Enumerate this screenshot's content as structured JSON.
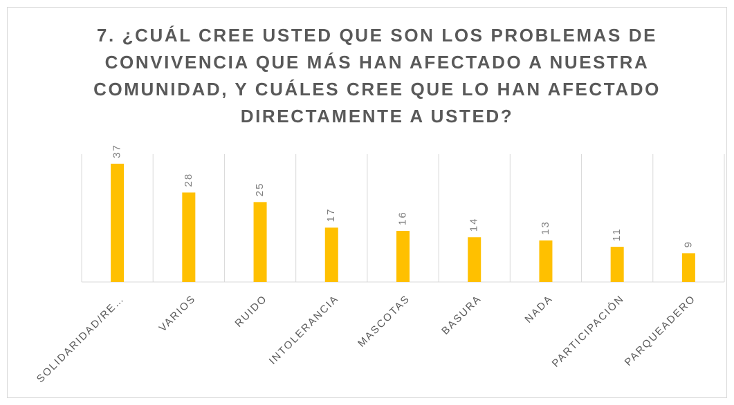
{
  "chart_data": {
    "type": "bar",
    "title": "7. ¿CUÁL CREE USTED QUE SON LOS PROBLEMAS DE CONVIVENCIA QUE MÁS HAN AFECTADO A NUESTRA COMUNIDAD, Y CUÁLES CREE QUE LO HAN AFECTADO DIRECTAMENTE A USTED?",
    "categories": [
      "SOLIDARIDAD/RE…",
      "VARIOS",
      "RUIDO",
      "INTOLERANCIA",
      "MASCOTAS",
      "BASURA",
      "NADA",
      "PARTICIPACIÓN",
      "PARQUEADERO"
    ],
    "values": [
      37,
      28,
      25,
      17,
      16,
      14,
      13,
      11,
      9
    ],
    "color": "#ffc000",
    "ylim": [
      0,
      40
    ]
  }
}
